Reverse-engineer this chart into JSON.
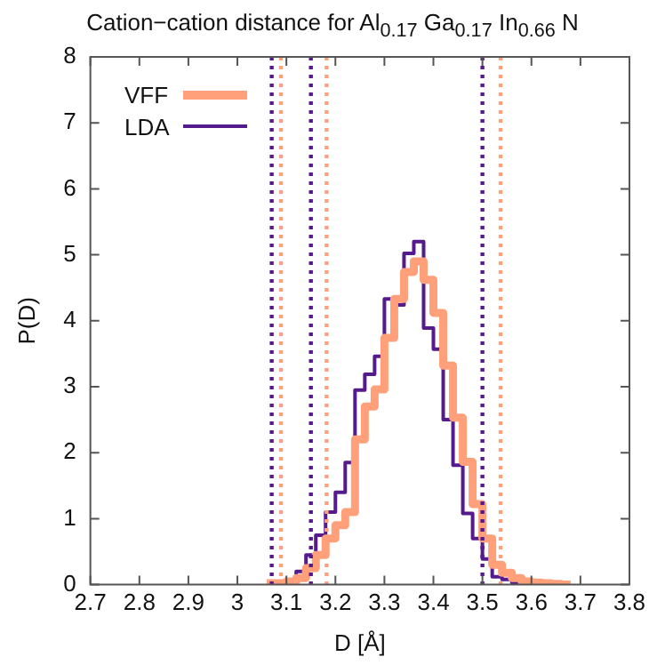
{
  "chart_data": {
    "type": "step",
    "title": "Cation−cation distance for Al$_{0.17}$ Ga$_{0.17}$ In$_{0.66}$ N",
    "xlabel": "D [Å]",
    "ylabel": "P(D)",
    "x": [
      3.06,
      3.08,
      3.1,
      3.12,
      3.14,
      3.16,
      3.18,
      3.2,
      3.22,
      3.24,
      3.26,
      3.28,
      3.3,
      3.32,
      3.34,
      3.36,
      3.38,
      3.4,
      3.42,
      3.44,
      3.46,
      3.48,
      3.5,
      3.52,
      3.54,
      3.56,
      3.58,
      3.6,
      3.62,
      3.64,
      3.66,
      3.68
    ],
    "series": [
      {
        "name": "VFF",
        "color": "#ffa07a",
        "values": [
          0.02,
          0.02,
          0.02,
          0.05,
          0.1,
          0.25,
          0.45,
          0.7,
          0.9,
          1.1,
          2.2,
          2.7,
          2.96,
          3.74,
          4.33,
          4.74,
          4.9,
          4.62,
          4.12,
          3.32,
          2.53,
          1.86,
          1.22,
          0.7,
          0.3,
          0.18,
          0.1,
          0.05,
          0.03,
          0.02,
          0.01,
          0
        ]
      },
      {
        "name": "LDA",
        "color": "#551a8b",
        "values": [
          0,
          0,
          0,
          0.05,
          0.2,
          0.45,
          0.75,
          1.1,
          1.4,
          1.85,
          2.95,
          3.19,
          3.46,
          4.33,
          4.24,
          5.02,
          5.2,
          3.89,
          3.57,
          2.5,
          1.81,
          1.08,
          0.7,
          0.39,
          0.12,
          0.08,
          0.03,
          0,
          null,
          null,
          null,
          null
        ]
      }
    ],
    "xlim": [
      2.7,
      3.8
    ],
    "xticks": [
      2.7,
      2.8,
      2.9,
      3,
      3.1,
      3.2,
      3.3,
      3.4,
      3.5,
      3.6,
      3.7,
      3.8
    ],
    "ylim": [
      0,
      8
    ],
    "yticks": [
      0,
      1,
      2,
      3,
      4,
      5,
      6,
      7,
      8
    ],
    "ref_lines": [
      {
        "axis": "x",
        "value": 3.07,
        "color": "#551a8b",
        "line_style": "dotted"
      },
      {
        "axis": "x",
        "value": 3.15,
        "color": "#551a8b",
        "line_style": "dotted"
      },
      {
        "axis": "x",
        "value": 3.5,
        "color": "#551a8b",
        "line_style": "dotted"
      },
      {
        "axis": "x",
        "value": 3.089,
        "color": "#ffa07a",
        "line_style": "dotted"
      },
      {
        "axis": "x",
        "value": 3.182,
        "color": "#ffa07a",
        "line_style": "dotted"
      },
      {
        "axis": "x",
        "value": 3.537,
        "color": "#ffa07a",
        "line_style": "dotted"
      }
    ],
    "legend": "top left"
  }
}
